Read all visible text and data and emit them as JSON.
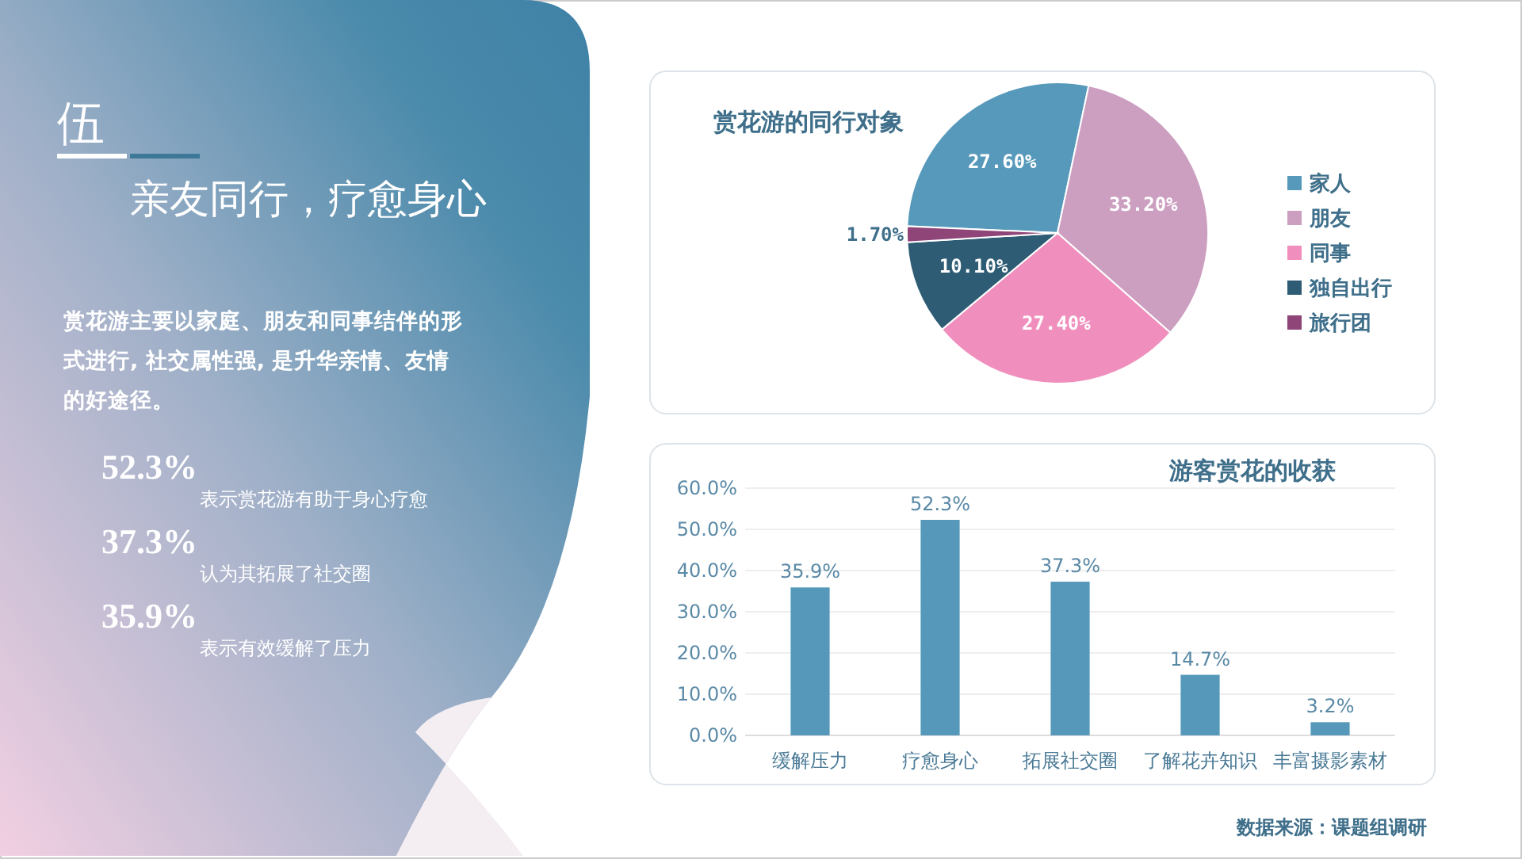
{
  "chart_data": [
    {
      "type": "other",
      "title": "伍",
      "subtitle": "亲友同行，疗愈身心",
      "annotations": [
        "赏花游主要以家庭、朋友和同事结伴的形式进行, 社交属性强, 是升华亲情、友情的好途径。",
        "52.3%",
        "表示赏花游有助于身心疗愈",
        "37.3%",
        "认为其拓展了社交圈",
        "35.9%",
        "表示有效缓解了压力"
      ]
    },
    {
      "type": "pie",
      "title": "赏花游的同行对象",
      "categories": [
        "家人",
        "朋友",
        "同事",
        "独自出行",
        "旅行团"
      ],
      "values": [
        27.6,
        33.2,
        27.4,
        10.1,
        1.7
      ],
      "colors": [
        "#5799bb",
        "#cc9fc1",
        "#f08fbd",
        "#2e5c74",
        "#8f4577"
      ],
      "value_labels": [
        "27.60%",
        "33.20%",
        "27.40%",
        "10.10%",
        "1.70%"
      ],
      "legend": "right"
    },
    {
      "type": "bar",
      "title": "游客赏花的收获",
      "categories": [
        "缓解压力",
        "疗愈身心",
        "拓展社交圈",
        "了解花卉知识",
        "丰富摄影素材"
      ],
      "values": [
        35.9,
        52.3,
        37.3,
        14.7,
        3.2
      ],
      "color": "#5598ba",
      "ylim": [
        0,
        60
      ],
      "yticks": [
        {
          "value": 0,
          "label": "0.0%"
        },
        {
          "value": 10,
          "label": "10.0%"
        },
        {
          "value": 20,
          "label": "20.0%"
        },
        {
          "value": 30,
          "label": "30.0%"
        },
        {
          "value": 40,
          "label": "40.0%"
        },
        {
          "value": 50,
          "label": "50.0%"
        },
        {
          "value": 60,
          "label": "60.0%"
        }
      ],
      "value_labels": [
        "35.9%",
        "52.3%",
        "37.3%",
        "14.7%",
        "3.2%"
      ],
      "grid": "y",
      "annotations": [
        "数据来源：课题组调研"
      ]
    }
  ]
}
